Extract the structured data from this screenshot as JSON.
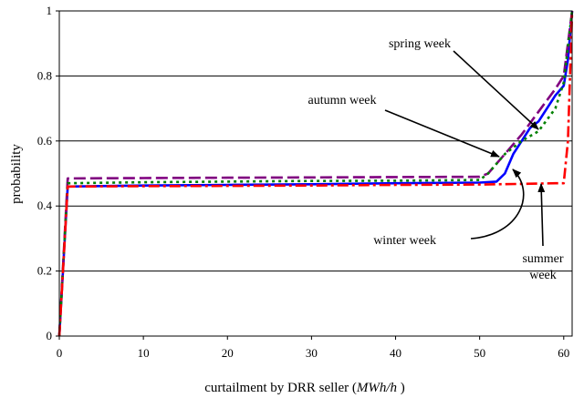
{
  "chart_data": {
    "type": "line",
    "title": "",
    "xlabel_plain": "curtailment by DRR seller (",
    "xlabel_italic": "MWh/h",
    "xlabel_close": " )",
    "ylabel": "probability",
    "xlim": [
      0,
      61
    ],
    "ylim": [
      0,
      1
    ],
    "xticks": [
      "0",
      "10",
      "20",
      "30",
      "40",
      "50",
      "60"
    ],
    "yticks": [
      "0",
      "0.2",
      "0.4",
      "0.6",
      "0.8",
      "1"
    ],
    "grid": "horizontal",
    "series": [
      {
        "name": "spring week",
        "color": "#0000ff",
        "dash": "solid",
        "points": [
          [
            0,
            0
          ],
          [
            1,
            0.46
          ],
          [
            10,
            0.463
          ],
          [
            20,
            0.465
          ],
          [
            30,
            0.467
          ],
          [
            40,
            0.47
          ],
          [
            50,
            0.472
          ],
          [
            52,
            0.475
          ],
          [
            53,
            0.5
          ],
          [
            54,
            0.56
          ],
          [
            55,
            0.6
          ],
          [
            56,
            0.64
          ],
          [
            57,
            0.66
          ],
          [
            58,
            0.7
          ],
          [
            59,
            0.74
          ],
          [
            60,
            0.77
          ],
          [
            60.5,
            0.85
          ],
          [
            61,
            1
          ]
        ]
      },
      {
        "name": "autumn week",
        "color": "#800080",
        "dash": "long-dash",
        "points": [
          [
            0,
            0
          ],
          [
            1,
            0.485
          ],
          [
            10,
            0.486
          ],
          [
            20,
            0.487
          ],
          [
            30,
            0.488
          ],
          [
            40,
            0.489
          ],
          [
            50,
            0.49
          ],
          [
            51,
            0.5
          ],
          [
            53,
            0.56
          ],
          [
            55,
            0.62
          ],
          [
            57,
            0.69
          ],
          [
            59,
            0.76
          ],
          [
            60,
            0.8
          ],
          [
            61,
            1
          ]
        ]
      },
      {
        "name": "winter week",
        "color": "#008000",
        "dash": "dotted",
        "points": [
          [
            0,
            0
          ],
          [
            1,
            0.47
          ],
          [
            10,
            0.473
          ],
          [
            20,
            0.475
          ],
          [
            30,
            0.477
          ],
          [
            40,
            0.478
          ],
          [
            50,
            0.48
          ],
          [
            51,
            0.5
          ],
          [
            52,
            0.53
          ],
          [
            53,
            0.56
          ],
          [
            55,
            0.6
          ],
          [
            57,
            0.63
          ],
          [
            59,
            0.7
          ],
          [
            60,
            0.78
          ],
          [
            61,
            1
          ]
        ]
      },
      {
        "name": "summer week",
        "color": "#ff0000",
        "dash": "dash-dot",
        "points": [
          [
            0,
            0
          ],
          [
            1,
            0.46
          ],
          [
            10,
            0.461
          ],
          [
            20,
            0.462
          ],
          [
            30,
            0.463
          ],
          [
            40,
            0.465
          ],
          [
            50,
            0.466
          ],
          [
            55,
            0.468
          ],
          [
            59,
            0.47
          ],
          [
            60,
            0.47
          ],
          [
            60.5,
            0.6
          ],
          [
            61,
            1
          ]
        ]
      }
    ],
    "annotations": [
      {
        "lines": [
          "spring week"
        ]
      },
      {
        "lines": [
          "autumn week"
        ]
      },
      {
        "lines": [
          "winter week"
        ]
      },
      {
        "lines": [
          "summer",
          "week"
        ]
      }
    ]
  }
}
